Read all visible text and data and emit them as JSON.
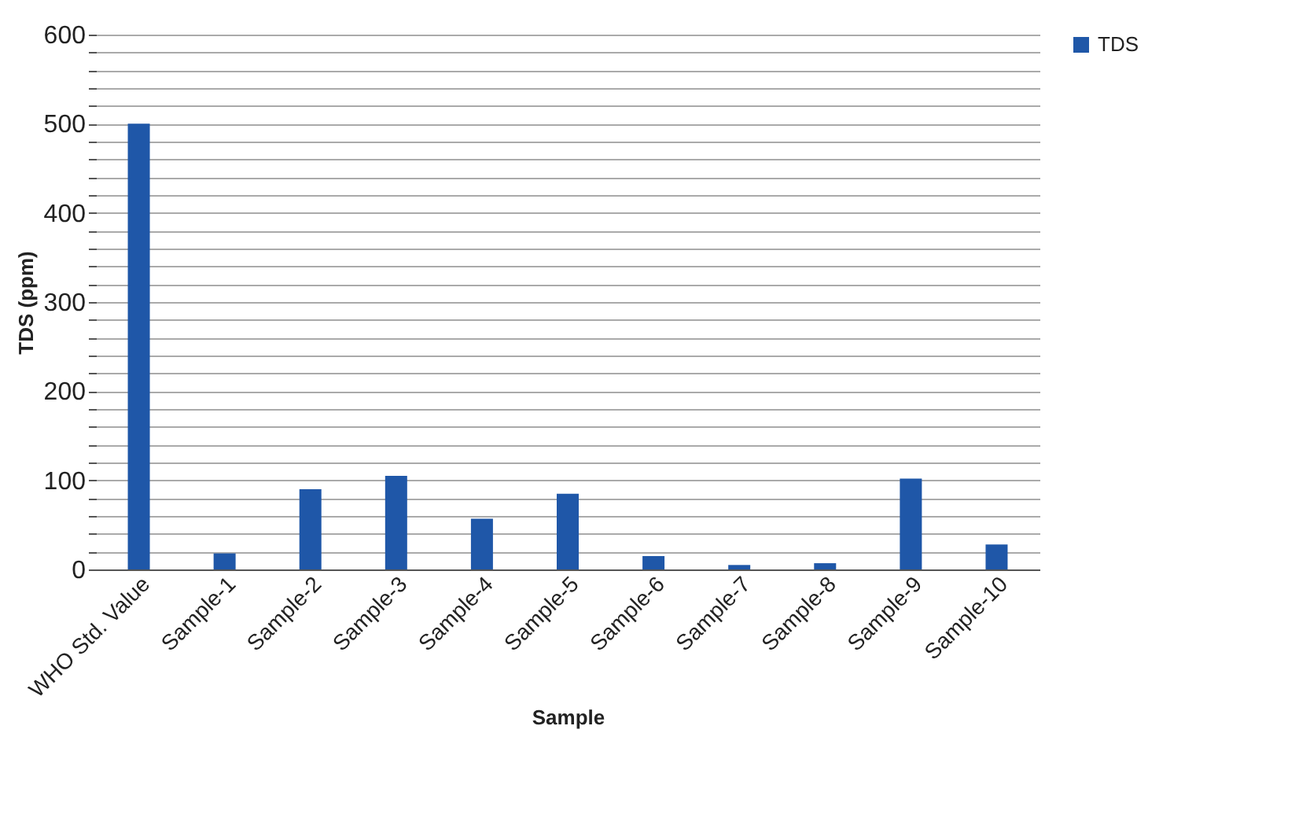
{
  "chart_data": {
    "type": "bar",
    "xlabel": "Sample",
    "ylabel": "TDS (ppm)",
    "categories": [
      "WHO Std. Value",
      "Sample-1",
      "Sample-2",
      "Sample-3",
      "Sample-4",
      "Sample-5",
      "Sample-6",
      "Sample-7",
      "Sample-8",
      "Sample-9",
      "Sample-10"
    ],
    "series": [
      {
        "name": "TDS",
        "color": "#1f57a8",
        "values": [
          500,
          18,
          90,
          105,
          57,
          85,
          15,
          5,
          7,
          102,
          28
        ]
      }
    ],
    "ylim": [
      0,
      600
    ],
    "yticks": [
      0,
      {
        "value": 20,
        "label": null
      },
      {
        "value": 40,
        "label": null
      },
      {
        "value": 60,
        "label": null
      },
      {
        "value": 80,
        "label": null
      },
      100,
      {
        "value": 120,
        "label": null
      },
      {
        "value": 140,
        "label": null
      },
      {
        "value": 160,
        "label": null
      },
      {
        "value": 180,
        "label": null
      },
      200,
      {
        "value": 220,
        "label": null
      },
      {
        "value": 240,
        "label": null
      },
      {
        "value": 260,
        "label": null
      },
      {
        "value": 280,
        "label": null
      },
      300,
      {
        "value": 320,
        "label": null
      },
      {
        "value": 340,
        "label": null
      },
      {
        "value": 360,
        "label": null
      },
      {
        "value": 380,
        "label": null
      },
      400,
      {
        "value": 420,
        "label": null
      },
      {
        "value": 440,
        "label": null
      },
      {
        "value": 460,
        "label": null
      },
      {
        "value": 480,
        "label": null
      },
      500,
      {
        "value": 520,
        "label": null
      },
      {
        "value": 540,
        "label": null
      },
      {
        "value": 560,
        "label": null
      },
      {
        "value": 580,
        "label": null
      },
      600
    ],
    "grid": true,
    "legend": "right"
  }
}
